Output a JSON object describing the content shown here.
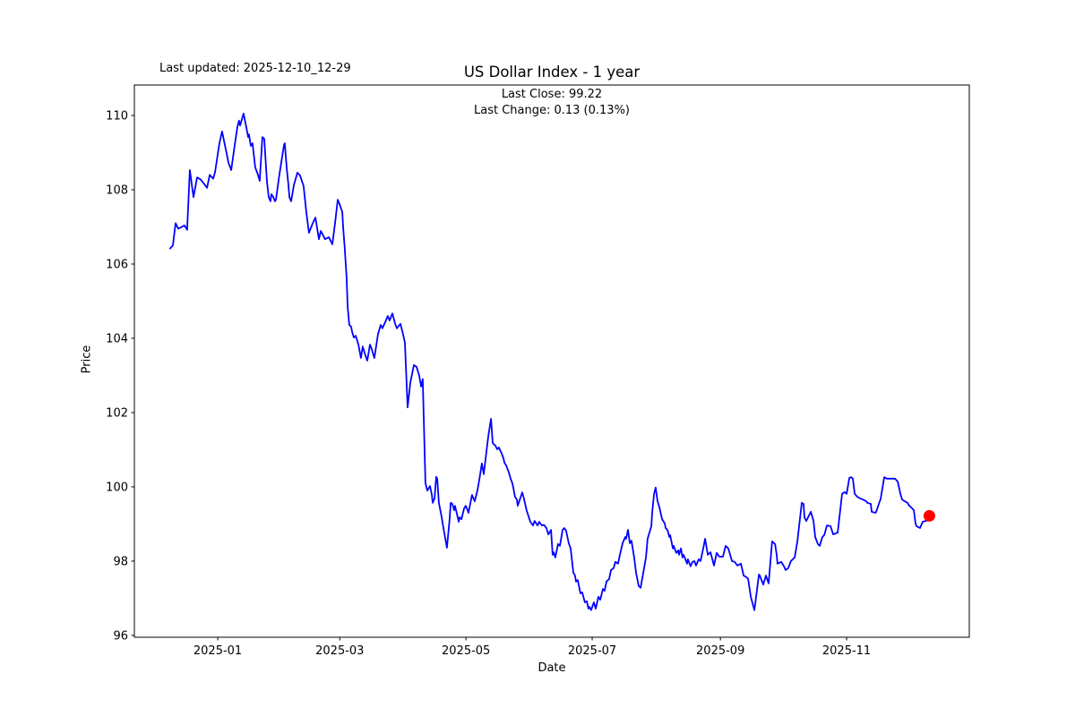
{
  "header": {
    "last_updated": "Last updated: 2025-12-10_12-29",
    "title": "US Dollar Index - 1 year",
    "last_close": "Last Close: 99.22",
    "last_change": "Last Change: 0.13 (0.13%)"
  },
  "axes": {
    "x_label": "Date",
    "y_label": "Price"
  },
  "chart_data": {
    "type": "line",
    "title": "US Dollar Index - 1 year",
    "xlabel": "Date",
    "ylabel": "Price",
    "grid": false,
    "legend": "none",
    "line_color": "#0000ff",
    "last_point_marker_color": "#ff0000",
    "last_close": 99.22,
    "last_change": 0.13,
    "last_change_pct": "0.13%",
    "x_unit": "days since first point (2024-12-09)",
    "xlim_days": [
      -17.3,
      386.3
    ],
    "ylim": [
      95.95,
      110.82
    ],
    "y_ticks": [
      96,
      98,
      100,
      102,
      104,
      106,
      108,
      110
    ],
    "x_ticks": [
      {
        "d": 23,
        "label": "2025-01"
      },
      {
        "d": 82,
        "label": "2025-03"
      },
      {
        "d": 143,
        "label": "2025-05"
      },
      {
        "d": 204,
        "label": "2025-07"
      },
      {
        "d": 266,
        "label": "2025-09"
      },
      {
        "d": 327,
        "label": "2025-11"
      }
    ],
    "points": [
      [
        0,
        106.42
      ],
      [
        1.3,
        106.5
      ],
      [
        2.6,
        107.1
      ],
      [
        3.9,
        106.95
      ],
      [
        5.6,
        107.0
      ],
      [
        6.9,
        107.04
      ],
      [
        8.2,
        106.92
      ],
      [
        9.5,
        108.53
      ],
      [
        11.3,
        107.8
      ],
      [
        13.0,
        108.33
      ],
      [
        14.7,
        108.28
      ],
      [
        16.5,
        108.15
      ],
      [
        17.8,
        108.05
      ],
      [
        19.1,
        108.4
      ],
      [
        20.8,
        108.3
      ],
      [
        21.7,
        108.48
      ],
      [
        23.8,
        109.25
      ],
      [
        25.1,
        109.57
      ],
      [
        26.9,
        109.08
      ],
      [
        28.2,
        108.72
      ],
      [
        29.5,
        108.53
      ],
      [
        31.2,
        109.2
      ],
      [
        32.5,
        109.69
      ],
      [
        33.3,
        109.86
      ],
      [
        33.8,
        109.73
      ],
      [
        35.5,
        110.05
      ],
      [
        36.8,
        109.69
      ],
      [
        37.7,
        109.42
      ],
      [
        38.1,
        109.49
      ],
      [
        39.0,
        109.18
      ],
      [
        39.8,
        109.25
      ],
      [
        41.1,
        108.6
      ],
      [
        42.4,
        108.41
      ],
      [
        43.3,
        108.24
      ],
      [
        44.6,
        109.42
      ],
      [
        45.5,
        109.37
      ],
      [
        46.8,
        108.22
      ],
      [
        47.6,
        107.81
      ],
      [
        48.5,
        107.69
      ],
      [
        48.9,
        107.88
      ],
      [
        49.8,
        107.81
      ],
      [
        50.7,
        107.69
      ],
      [
        51.1,
        107.73
      ],
      [
        52.8,
        108.41
      ],
      [
        53.3,
        108.58
      ],
      [
        55.0,
        109.2
      ],
      [
        55.4,
        109.25
      ],
      [
        56.3,
        108.6
      ],
      [
        57.2,
        108.12
      ],
      [
        57.6,
        107.81
      ],
      [
        58.5,
        107.69
      ],
      [
        59.8,
        108.12
      ],
      [
        61.5,
        108.46
      ],
      [
        62.8,
        108.38
      ],
      [
        64.5,
        108.1
      ],
      [
        65.8,
        107.4
      ],
      [
        67.1,
        106.84
      ],
      [
        68.9,
        107.1
      ],
      [
        70.2,
        107.25
      ],
      [
        71.9,
        106.67
      ],
      [
        72.8,
        106.89
      ],
      [
        74.1,
        106.75
      ],
      [
        74.9,
        106.67
      ],
      [
        76.7,
        106.72
      ],
      [
        78.4,
        106.53
      ],
      [
        79.7,
        107.1
      ],
      [
        81.0,
        107.73
      ],
      [
        81.9,
        107.61
      ],
      [
        83.2,
        107.4
      ],
      [
        83.6,
        107.01
      ],
      [
        84.4,
        106.43
      ],
      [
        85.3,
        105.64
      ],
      [
        85.8,
        104.84
      ],
      [
        86.6,
        104.36
      ],
      [
        87.5,
        104.31
      ],
      [
        87.9,
        104.19
      ],
      [
        88.8,
        104.02
      ],
      [
        89.7,
        104.07
      ],
      [
        91.0,
        103.83
      ],
      [
        92.2,
        103.47
      ],
      [
        93.1,
        103.78
      ],
      [
        94.4,
        103.54
      ],
      [
        95.3,
        103.4
      ],
      [
        96.6,
        103.83
      ],
      [
        97.4,
        103.71
      ],
      [
        98.7,
        103.47
      ],
      [
        100.5,
        104.12
      ],
      [
        100.9,
        104.19
      ],
      [
        101.8,
        104.36
      ],
      [
        102.6,
        104.27
      ],
      [
        103.9,
        104.43
      ],
      [
        105.2,
        104.6
      ],
      [
        106.1,
        104.48
      ],
      [
        107.4,
        104.67
      ],
      [
        108.7,
        104.4
      ],
      [
        109.6,
        104.27
      ],
      [
        111.3,
        104.39
      ],
      [
        112.6,
        104.1
      ],
      [
        113.5,
        103.88
      ],
      [
        114.8,
        102.14
      ],
      [
        116.1,
        102.8
      ],
      [
        117.8,
        103.28
      ],
      [
        119.1,
        103.23
      ],
      [
        120.4,
        102.99
      ],
      [
        121.3,
        102.7
      ],
      [
        122.1,
        102.9
      ],
      [
        123.4,
        100.1
      ],
      [
        124.3,
        99.9
      ],
      [
        125.6,
        100.02
      ],
      [
        126.5,
        99.78
      ],
      [
        126.9,
        99.57
      ],
      [
        127.8,
        99.69
      ],
      [
        128.6,
        100.27
      ],
      [
        129.1,
        100.22
      ],
      [
        129.9,
        99.57
      ],
      [
        131.2,
        99.2
      ],
      [
        132.1,
        98.89
      ],
      [
        133.8,
        98.36
      ],
      [
        135.1,
        99.13
      ],
      [
        135.6,
        99.57
      ],
      [
        136.4,
        99.54
      ],
      [
        137.3,
        99.37
      ],
      [
        137.7,
        99.49
      ],
      [
        139.5,
        99.06
      ],
      [
        139.9,
        99.18
      ],
      [
        140.8,
        99.13
      ],
      [
        142.1,
        99.42
      ],
      [
        142.9,
        99.49
      ],
      [
        143.8,
        99.37
      ],
      [
        144.2,
        99.3
      ],
      [
        145.9,
        99.78
      ],
      [
        147.2,
        99.61
      ],
      [
        148.5,
        99.9
      ],
      [
        149.4,
        100.17
      ],
      [
        150.7,
        100.63
      ],
      [
        151.6,
        100.34
      ],
      [
        153.8,
        101.37
      ],
      [
        155.1,
        101.83
      ],
      [
        155.9,
        101.18
      ],
      [
        156.8,
        101.13
      ],
      [
        157.2,
        101.11
      ],
      [
        158.1,
        101.01
      ],
      [
        158.9,
        101.06
      ],
      [
        160.3,
        100.89
      ],
      [
        161.1,
        100.77
      ],
      [
        161.6,
        100.65
      ],
      [
        162.4,
        100.58
      ],
      [
        163.7,
        100.39
      ],
      [
        164.6,
        100.22
      ],
      [
        165.4,
        100.1
      ],
      [
        165.9,
        99.98
      ],
      [
        166.7,
        99.73
      ],
      [
        167.6,
        99.66
      ],
      [
        168.0,
        99.49
      ],
      [
        168.9,
        99.64
      ],
      [
        170.2,
        99.85
      ],
      [
        171.0,
        99.69
      ],
      [
        172.3,
        99.37
      ],
      [
        174.1,
        99.06
      ],
      [
        175.4,
        98.96
      ],
      [
        176.2,
        99.08
      ],
      [
        177.6,
        98.96
      ],
      [
        178.4,
        99.06
      ],
      [
        179.7,
        98.96
      ],
      [
        180.6,
        98.98
      ],
      [
        181.9,
        98.89
      ],
      [
        182.8,
        98.72
      ],
      [
        184.1,
        98.84
      ],
      [
        184.9,
        98.17
      ],
      [
        185.4,
        98.24
      ],
      [
        186.2,
        98.1
      ],
      [
        187.5,
        98.46
      ],
      [
        188.4,
        98.41
      ],
      [
        189.7,
        98.84
      ],
      [
        190.5,
        98.89
      ],
      [
        191.4,
        98.82
      ],
      [
        192.7,
        98.48
      ],
      [
        193.6,
        98.34
      ],
      [
        194.9,
        97.69
      ],
      [
        195.7,
        97.61
      ],
      [
        196.2,
        97.45
      ],
      [
        197.0,
        97.49
      ],
      [
        198.3,
        97.13
      ],
      [
        199.2,
        97.16
      ],
      [
        200.5,
        96.89
      ],
      [
        201.4,
        96.92
      ],
      [
        202.2,
        96.72
      ],
      [
        202.7,
        96.77
      ],
      [
        203.5,
        96.68
      ],
      [
        204.8,
        96.89
      ],
      [
        205.7,
        96.72
      ],
      [
        207.0,
        97.04
      ],
      [
        207.9,
        96.96
      ],
      [
        209.2,
        97.25
      ],
      [
        210.0,
        97.2
      ],
      [
        210.9,
        97.45
      ],
      [
        212.2,
        97.52
      ],
      [
        213.1,
        97.76
      ],
      [
        214.4,
        97.81
      ],
      [
        215.2,
        97.98
      ],
      [
        216.5,
        97.93
      ],
      [
        217.4,
        98.17
      ],
      [
        218.7,
        98.48
      ],
      [
        219.6,
        98.6
      ],
      [
        220.0,
        98.65
      ],
      [
        220.4,
        98.6
      ],
      [
        221.3,
        98.84
      ],
      [
        222.2,
        98.48
      ],
      [
        223.0,
        98.55
      ],
      [
        224.3,
        98.1
      ],
      [
        225.2,
        97.69
      ],
      [
        226.5,
        97.33
      ],
      [
        227.4,
        97.28
      ],
      [
        228.7,
        97.69
      ],
      [
        230.0,
        98.1
      ],
      [
        230.8,
        98.6
      ],
      [
        232.6,
        98.94
      ],
      [
        233.0,
        99.3
      ],
      [
        233.9,
        99.81
      ],
      [
        234.7,
        99.98
      ],
      [
        235.6,
        99.61
      ],
      [
        236.5,
        99.45
      ],
      [
        237.3,
        99.25
      ],
      [
        237.8,
        99.13
      ],
      [
        239.1,
        99.01
      ],
      [
        239.5,
        98.89
      ],
      [
        240.4,
        98.84
      ],
      [
        241.3,
        98.65
      ],
      [
        241.7,
        98.7
      ],
      [
        243.0,
        98.34
      ],
      [
        243.4,
        98.41
      ],
      [
        244.7,
        98.22
      ],
      [
        245.6,
        98.29
      ],
      [
        246.0,
        98.17
      ],
      [
        246.9,
        98.34
      ],
      [
        247.7,
        98.1
      ],
      [
        248.2,
        98.17
      ],
      [
        249.9,
        97.93
      ],
      [
        250.3,
        98.05
      ],
      [
        251.6,
        97.86
      ],
      [
        252.5,
        97.98
      ],
      [
        253.4,
        98.0
      ],
      [
        254.2,
        97.88
      ],
      [
        255.5,
        98.05
      ],
      [
        256.4,
        98.0
      ],
      [
        257.7,
        98.34
      ],
      [
        258.6,
        98.6
      ],
      [
        259.9,
        98.17
      ],
      [
        261.2,
        98.24
      ],
      [
        262.9,
        97.88
      ],
      [
        264.2,
        98.22
      ],
      [
        265.5,
        98.12
      ],
      [
        267.2,
        98.12
      ],
      [
        268.5,
        98.41
      ],
      [
        269.8,
        98.34
      ],
      [
        271.6,
        98.0
      ],
      [
        272.9,
        97.98
      ],
      [
        274.2,
        97.88
      ],
      [
        275.9,
        97.93
      ],
      [
        277.2,
        97.61
      ],
      [
        278.5,
        97.57
      ],
      [
        279.4,
        97.52
      ],
      [
        280.7,
        97.04
      ],
      [
        282.4,
        96.68
      ],
      [
        284.6,
        97.64
      ],
      [
        285.0,
        97.61
      ],
      [
        286.7,
        97.37
      ],
      [
        288.0,
        97.61
      ],
      [
        289.3,
        97.4
      ],
      [
        291.0,
        98.53
      ],
      [
        292.4,
        98.46
      ],
      [
        293.2,
        98.17
      ],
      [
        293.6,
        97.93
      ],
      [
        295.4,
        97.98
      ],
      [
        296.7,
        97.86
      ],
      [
        297.5,
        97.76
      ],
      [
        298.8,
        97.81
      ],
      [
        300.1,
        98.0
      ],
      [
        301.9,
        98.1
      ],
      [
        303.2,
        98.53
      ],
      [
        305.3,
        99.57
      ],
      [
        306.2,
        99.54
      ],
      [
        306.6,
        99.18
      ],
      [
        307.5,
        99.08
      ],
      [
        309.7,
        99.33
      ],
      [
        311.0,
        99.08
      ],
      [
        311.8,
        98.65
      ],
      [
        313.1,
        98.46
      ],
      [
        314.0,
        98.41
      ],
      [
        315.3,
        98.65
      ],
      [
        316.2,
        98.7
      ],
      [
        317.5,
        98.96
      ],
      [
        319.2,
        98.94
      ],
      [
        320.5,
        98.72
      ],
      [
        322.7,
        98.77
      ],
      [
        324.8,
        99.81
      ],
      [
        326.1,
        99.86
      ],
      [
        327.0,
        99.81
      ],
      [
        328.3,
        100.24
      ],
      [
        329.2,
        100.26
      ],
      [
        330.0,
        100.22
      ],
      [
        330.9,
        99.81
      ],
      [
        332.2,
        99.73
      ],
      [
        333.5,
        99.69
      ],
      [
        334.8,
        99.66
      ],
      [
        336.5,
        99.61
      ],
      [
        337.0,
        99.57
      ],
      [
        338.7,
        99.54
      ],
      [
        339.1,
        99.33
      ],
      [
        340.9,
        99.3
      ],
      [
        341.3,
        99.33
      ],
      [
        343.0,
        99.61
      ],
      [
        343.4,
        99.66
      ],
      [
        345.2,
        100.26
      ],
      [
        346.5,
        100.22
      ],
      [
        349.1,
        100.22
      ],
      [
        350.4,
        100.22
      ],
      [
        351.7,
        100.14
      ],
      [
        353.0,
        99.81
      ],
      [
        353.8,
        99.66
      ],
      [
        355.1,
        99.61
      ],
      [
        356.4,
        99.57
      ],
      [
        357.3,
        99.49
      ],
      [
        358.2,
        99.45
      ],
      [
        359.5,
        99.37
      ],
      [
        360.3,
        99.01
      ],
      [
        360.8,
        98.94
      ],
      [
        362.5,
        98.89
      ],
      [
        363.8,
        99.06
      ],
      [
        365.1,
        99.08
      ],
      [
        366.0,
        99.09
      ],
      [
        367.0,
        99.22
      ]
    ]
  }
}
